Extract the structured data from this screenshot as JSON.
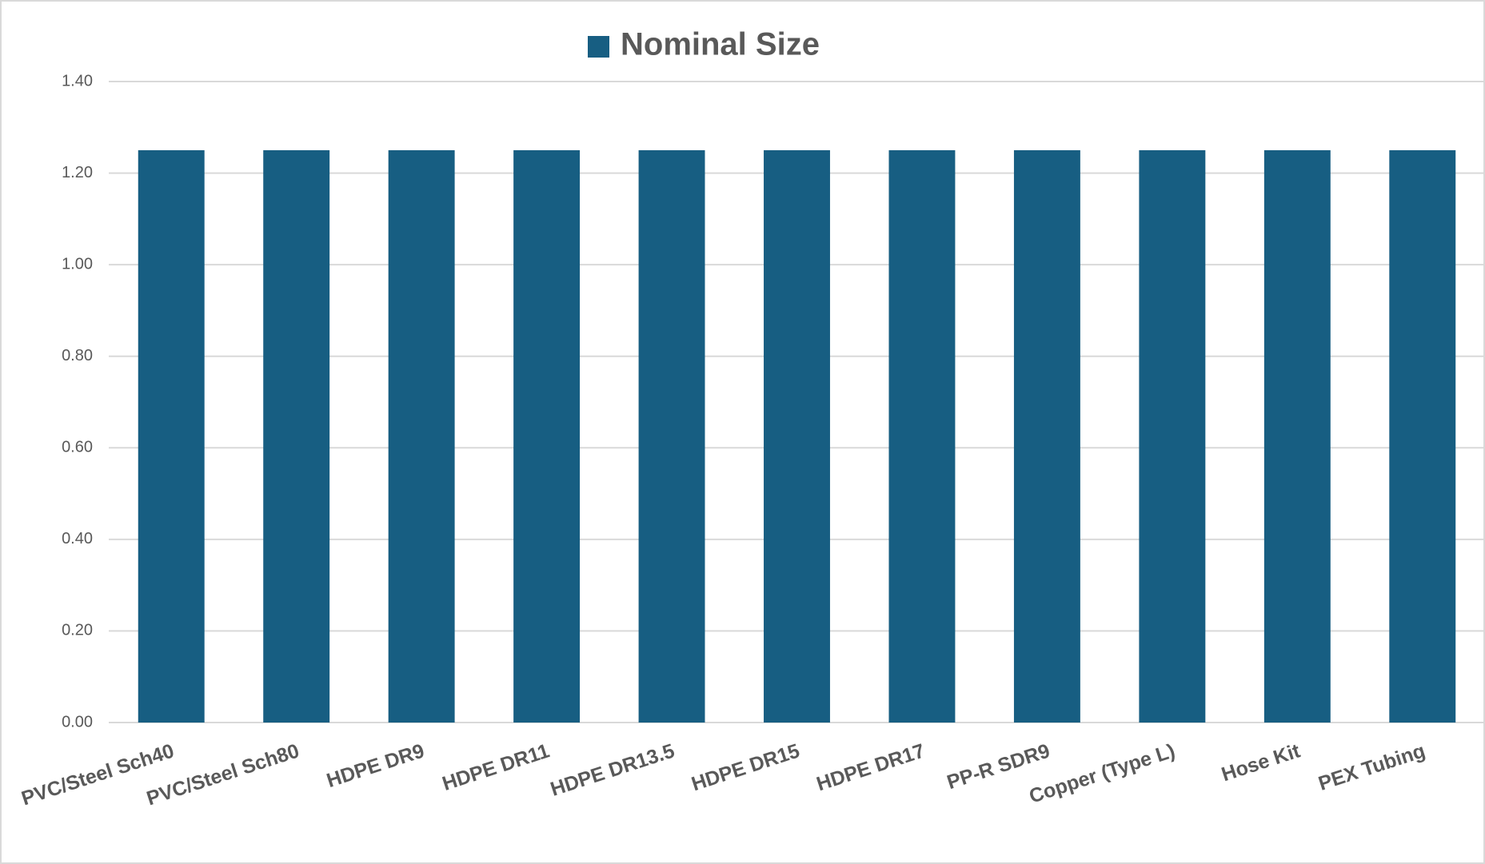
{
  "chart_data": {
    "type": "bar",
    "categories": [
      "PVC/Steel Sch40",
      "PVC/Steel Sch80",
      "HDPE DR9",
      "HDPE DR11",
      "HDPE DR13.5",
      "HDPE DR15",
      "HDPE DR17",
      "PP-R SDR9",
      "Copper (Type L)",
      "Hose Kit",
      "PEX Tubing"
    ],
    "series": [
      {
        "name": "Nominal Size",
        "color": "#175e82",
        "values": [
          1.25,
          1.25,
          1.25,
          1.25,
          1.25,
          1.25,
          1.25,
          1.25,
          1.25,
          1.25,
          1.25
        ]
      }
    ],
    "ylim": [
      0,
      1.4
    ],
    "yticks": [
      {
        "value": 0,
        "label": "0.00"
      },
      {
        "value": 0.2,
        "label": "0.20"
      },
      {
        "value": 0.4,
        "label": "0.40"
      },
      {
        "value": 0.6,
        "label": "0.60"
      },
      {
        "value": 0.8,
        "label": "0.80"
      },
      {
        "value": 1.0,
        "label": "1.00"
      },
      {
        "value": 1.2,
        "label": "1.20"
      },
      {
        "value": 1.4,
        "label": "1.40"
      }
    ],
    "grid": true,
    "legend": "top"
  }
}
